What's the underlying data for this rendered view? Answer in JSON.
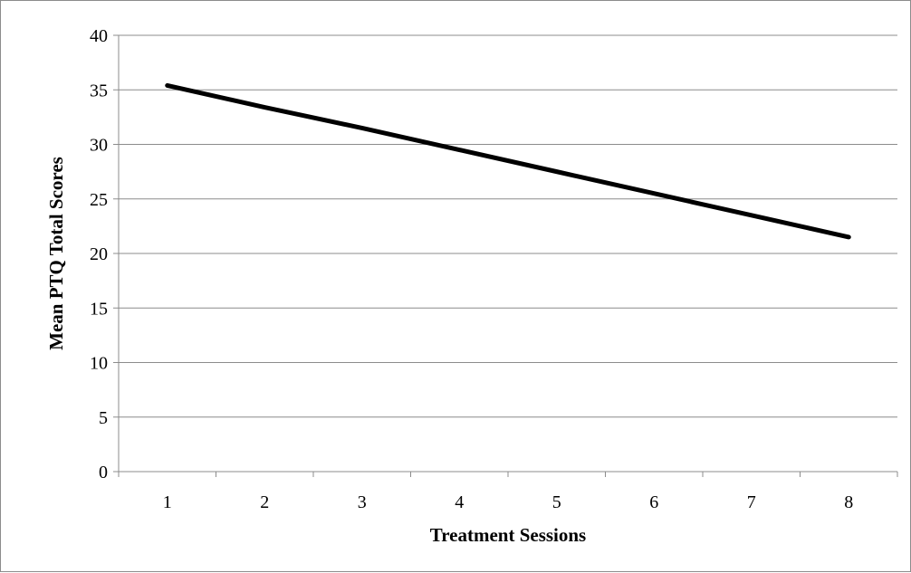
{
  "chart_data": {
    "type": "line",
    "title": "",
    "xlabel": "Treatment Sessions",
    "ylabel": "Mean PTQ Total Scores",
    "x": [
      1,
      2,
      3,
      4,
      5,
      6,
      7,
      8
    ],
    "x_tick_labels": [
      "1",
      "2",
      "3",
      "4",
      "5",
      "6",
      "7",
      "8"
    ],
    "y_ticks": [
      0,
      5,
      10,
      15,
      20,
      25,
      30,
      35,
      40
    ],
    "y_tick_labels": [
      "0",
      "5",
      "10",
      "15",
      "20",
      "25",
      "30",
      "35",
      "40"
    ],
    "ylim": [
      0,
      40
    ],
    "grid": "horizontal",
    "legend": "none",
    "series": [
      {
        "values": [
          35.4,
          33.4,
          31.5,
          29.5,
          27.5,
          25.5,
          23.5,
          21.5
        ],
        "color": "#000000"
      }
    ]
  }
}
